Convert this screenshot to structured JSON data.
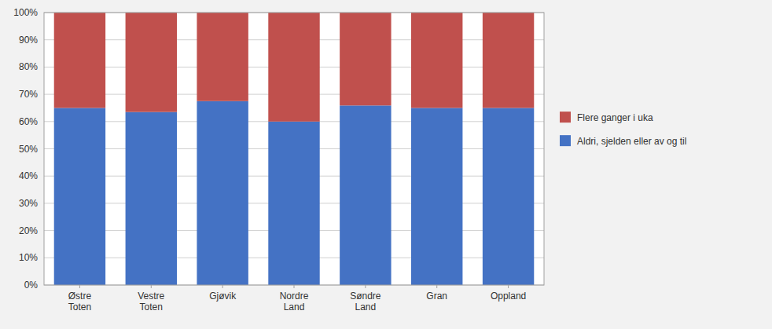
{
  "chart_data": {
    "type": "bar",
    "stacked": true,
    "categories": [
      "Østre\nToten",
      "Vestre\nToten",
      "Gjøvik",
      "Nordre\nLand",
      "Søndre\nLand",
      "Gran",
      "Oppland"
    ],
    "series": [
      {
        "name": "Aldri, sjelden eller av og til",
        "color": "#4472C4",
        "values": [
          65.0,
          63.5,
          67.5,
          60.0,
          65.9,
          65.0,
          65.0
        ]
      },
      {
        "name": "Flere ganger i uka",
        "color": "#C0504D",
        "values": [
          35.0,
          36.5,
          32.5,
          40.0,
          34.1,
          35.0,
          35.0
        ]
      }
    ],
    "ylim": [
      0,
      100
    ],
    "yticks": [
      {
        "value": 0,
        "label": "0%"
      },
      {
        "value": 10,
        "label": "10%"
      },
      {
        "value": 20,
        "label": "20%"
      },
      {
        "value": 30,
        "label": "30%"
      },
      {
        "value": 40,
        "label": "40%"
      },
      {
        "value": 50,
        "label": "50%"
      },
      {
        "value": 60,
        "label": "60%"
      },
      {
        "value": 70,
        "label": "70%"
      },
      {
        "value": 80,
        "label": "80%"
      },
      {
        "value": 90,
        "label": "90%"
      },
      {
        "value": 100,
        "label": "100%"
      }
    ],
    "grid": true,
    "legend": "right"
  }
}
